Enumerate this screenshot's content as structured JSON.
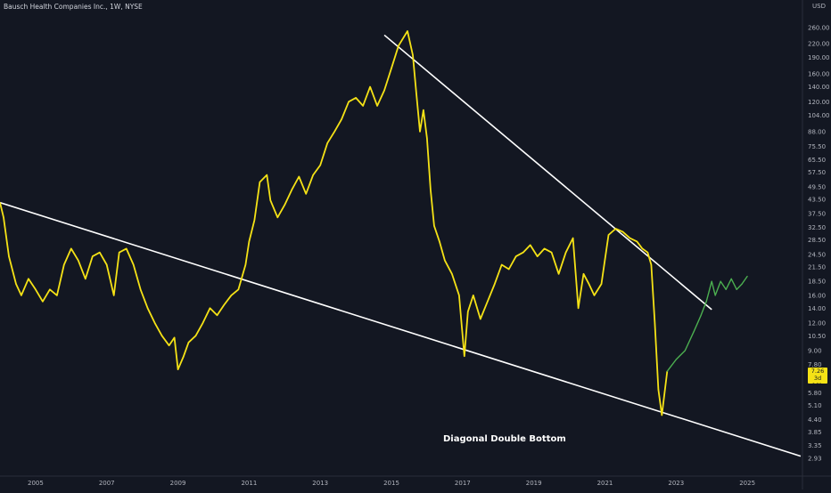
{
  "header": {
    "symbol_title": "Bausch Health Companies Inc., 1W, NYSE",
    "currency": "USD",
    "annotation": "Diagonal Double Bottom"
  },
  "price_label": {
    "price": "7.26",
    "countdown": "3d 18h"
  },
  "colors": {
    "background": "#131722",
    "main_series": "#f5e216",
    "recent_series": "#4caf50",
    "trendline": "#ffffff",
    "price_label_bg": "#f5e216"
  },
  "chart_data": {
    "type": "line",
    "title": "Bausch Health Companies Inc., 1W, NYSE",
    "y_scale": "log",
    "ylim": [
      2.7,
      290
    ],
    "xlim": [
      2004.0,
      2026.5
    ],
    "y_ticks": [
      "260.00",
      "220.00",
      "190.00",
      "160.00",
      "140.00",
      "120.00",
      "104.00",
      "88.00",
      "75.50",
      "65.50",
      "57.50",
      "49.50",
      "43.50",
      "37.50",
      "32.50",
      "28.50",
      "24.50",
      "21.50",
      "18.50",
      "16.00",
      "14.00",
      "12.00",
      "10.50",
      "9.00",
      "7.80",
      "6.80",
      "5.80",
      "5.10",
      "4.40",
      "3.85",
      "3.35",
      "2.93"
    ],
    "x_ticks": [
      "2005",
      "2007",
      "2009",
      "2011",
      "2013",
      "2015",
      "2017",
      "2019",
      "2021",
      "2023",
      "2025"
    ],
    "series": [
      {
        "color": "#f5e216",
        "x": [
          2004.0,
          2004.1,
          2004.25,
          2004.45,
          2004.6,
          2004.8,
          2005.0,
          2005.2,
          2005.4,
          2005.6,
          2005.8,
          2006.0,
          2006.2,
          2006.4,
          2006.6,
          2006.8,
          2007.0,
          2007.2,
          2007.35,
          2007.55,
          2007.75,
          2007.95,
          2008.15,
          2008.35,
          2008.55,
          2008.75,
          2008.9,
          2009.0,
          2009.15,
          2009.3,
          2009.5,
          2009.7,
          2009.9,
          2010.1,
          2010.3,
          2010.5,
          2010.7,
          2010.9,
          2011.0,
          2011.15,
          2011.3,
          2011.5,
          2011.6,
          2011.8,
          2012.0,
          2012.2,
          2012.4,
          2012.6,
          2012.8,
          2013.0,
          2013.2,
          2013.4,
          2013.6,
          2013.8,
          2014.0,
          2014.2,
          2014.4,
          2014.6,
          2014.8,
          2015.0,
          2015.2,
          2015.45,
          2015.6,
          2015.7,
          2015.8,
          2015.9,
          2016.0,
          2016.1,
          2016.2,
          2016.35,
          2016.5,
          2016.7,
          2016.9,
          2017.05,
          2017.15,
          2017.3,
          2017.5,
          2017.7,
          2017.9,
          2018.1,
          2018.3,
          2018.5,
          2018.7,
          2018.9,
          2019.1,
          2019.3,
          2019.5,
          2019.7,
          2019.9,
          2020.1,
          2020.25,
          2020.4,
          2020.55,
          2020.7,
          2020.9,
          2021.1,
          2021.3,
          2021.5,
          2021.7,
          2021.9,
          2022.05,
          2022.2,
          2022.3,
          2022.4,
          2022.5,
          2022.6,
          2022.75
        ],
        "y": [
          42,
          36,
          24,
          18,
          16,
          19,
          17,
          15,
          17,
          16,
          22,
          26,
          23,
          19,
          24,
          25,
          22,
          16,
          25,
          26,
          22,
          17,
          14,
          12,
          10.5,
          9.5,
          10.3,
          7.4,
          8.4,
          9.8,
          10.5,
          12,
          14,
          13,
          14.5,
          16,
          17,
          22,
          28,
          35,
          52,
          56,
          43,
          36,
          41,
          48,
          55,
          46,
          56,
          62,
          78,
          88,
          100,
          120,
          125,
          115,
          140,
          115,
          135,
          170,
          215,
          250,
          195,
          130,
          88,
          110,
          82,
          48,
          33,
          28,
          23,
          20,
          16,
          8.5,
          13.5,
          16,
          12.5,
          15,
          18,
          22,
          21,
          24,
          25,
          27,
          24,
          26,
          25,
          20,
          25,
          29,
          14,
          20,
          18,
          16,
          18,
          30,
          32,
          31,
          29,
          28,
          26,
          25,
          22,
          12,
          6,
          4.6,
          7.26
        ]
      },
      {
        "color": "#4caf50",
        "x": [
          2022.75,
          2023.0,
          2023.25,
          2023.5,
          2023.7,
          2023.85,
          2024.0,
          2024.1,
          2024.25,
          2024.4,
          2024.55,
          2024.7,
          2024.85,
          2025.0
        ],
        "y": [
          7.26,
          8.2,
          9,
          11,
          13,
          15,
          18.5,
          16,
          18.5,
          17,
          19,
          17,
          18,
          19.5
        ]
      }
    ],
    "trendlines": [
      {
        "from": [
          2004.0,
          42
        ],
        "to": [
          2026.5,
          3.0
        ]
      },
      {
        "from": [
          2014.8,
          240
        ],
        "to": [
          2024.0,
          13.8
        ]
      }
    ]
  }
}
